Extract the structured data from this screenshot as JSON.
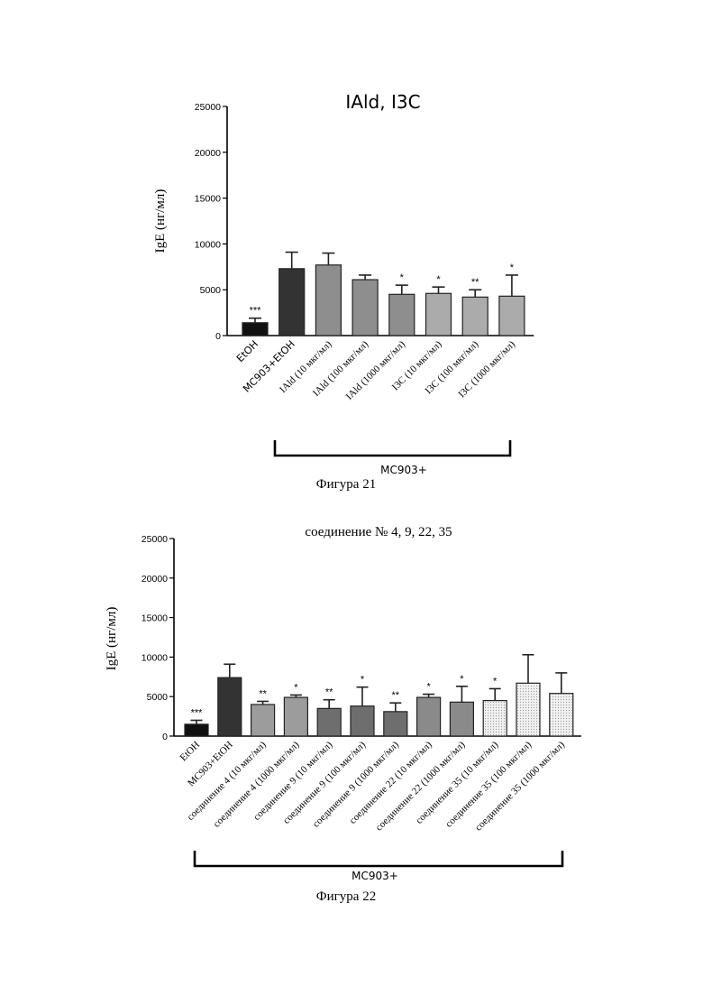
{
  "chart_data": [
    {
      "type": "bar",
      "title": "IAld, I3C",
      "ylabel": "IgE (нг/мл)",
      "ylim": [
        0,
        25000
      ],
      "yticks": [
        0,
        5000,
        10000,
        15000,
        20000,
        25000
      ],
      "categories": [
        "EtOH",
        "MC903+EtOH",
        "IAld (10 мкг/мл)",
        "IAld (100 мкг/мл)",
        "IAld (1000 мкг/мл)",
        "I3C (10 мкг/мл)",
        "I3C (100 мкг/мл)",
        "I3C (1000 мкг/мл)"
      ],
      "values": [
        1400,
        7300,
        7700,
        6100,
        4500,
        4600,
        4200,
        4300
      ],
      "errors": [
        500,
        1800,
        1300,
        500,
        1000,
        700,
        800,
        2300
      ],
      "significance": [
        "***",
        "",
        "",
        "",
        "*",
        "*",
        "**",
        "*"
      ],
      "colors": [
        "#111111",
        "#333333",
        "#8e8e8e",
        "#8e8e8e",
        "#8e8e8e",
        "#ababab",
        "#ababab",
        "#ababab"
      ],
      "bracket_label": "MC903+",
      "caption": "Фигура 21"
    },
    {
      "type": "bar",
      "title": "соединение № 4, 9, 22, 35",
      "ylabel": "IgE (нг/мл)",
      "ylim": [
        0,
        25000
      ],
      "yticks": [
        0,
        5000,
        10000,
        15000,
        20000,
        25000
      ],
      "categories": [
        "EtOH",
        "MC903+EtOH",
        "соединение 4 (10 мкг/мл)",
        "соединение 4 (1000 мкг/мл)",
        "соединение 9 (10 мкг/мл)",
        "соединение 9 (100 мкг/мл)",
        "соединение 9 (1000 мкг/мл)",
        "соединение 22 (10 мкг/мл)",
        "соединение 22 (1000 мкг/мл)",
        "соединение 35 (10 мкг/мл)",
        "соединение 35 (100 мкг/мл)",
        "соединение 35 (1000 мкг/мл)"
      ],
      "values": [
        1500,
        7400,
        4000,
        4900,
        3500,
        3800,
        3100,
        4900,
        4300,
        4500,
        6700,
        5400
      ],
      "errors": [
        500,
        1700,
        400,
        300,
        1100,
        2400,
        1100,
        400,
        2000,
        1500,
        3600,
        2600
      ],
      "significance": [
        "***",
        "",
        "**",
        "*",
        "**",
        "*",
        "**",
        "*",
        "*",
        "*",
        "",
        ""
      ],
      "colors": [
        "#111111",
        "#333333",
        "#9c9c9c",
        "#9c9c9c",
        "#6e6e6e",
        "#6e6e6e",
        "#6e6e6e",
        "#8a8a8a",
        "#8a8a8a",
        "#e3e3e3",
        "#e3e3e3",
        "#e3e3e3"
      ],
      "bracket_label": "MC903+",
      "caption": "Фигура 22"
    }
  ]
}
